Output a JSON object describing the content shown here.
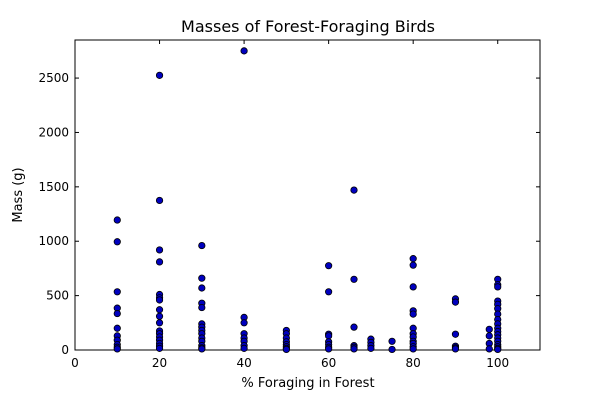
{
  "chart_data": {
    "type": "scatter",
    "title": "Masses of Forest-Foraging Birds",
    "xlabel": "% Foraging in Forest",
    "ylabel": "Mass (g)",
    "xlim": [
      0,
      110
    ],
    "ylim": [
      0,
      2850
    ],
    "x_ticks": [
      0,
      20,
      40,
      60,
      80,
      100
    ],
    "y_ticks": [
      0,
      500,
      1000,
      1500,
      2000,
      2500
    ],
    "grid": false,
    "legend": "none",
    "marker_color": "#0000bf",
    "marker_edge_color": "#000000",
    "points": [
      [
        10,
        1195
      ],
      [
        10,
        995
      ],
      [
        10,
        535
      ],
      [
        10,
        385
      ],
      [
        10,
        335
      ],
      [
        10,
        200
      ],
      [
        10,
        130
      ],
      [
        10,
        90
      ],
      [
        10,
        50
      ],
      [
        10,
        25
      ],
      [
        10,
        10
      ],
      [
        20,
        2525
      ],
      [
        20,
        1375
      ],
      [
        20,
        920
      ],
      [
        20,
        810
      ],
      [
        20,
        510
      ],
      [
        20,
        480
      ],
      [
        20,
        460
      ],
      [
        20,
        370
      ],
      [
        20,
        310
      ],
      [
        20,
        250
      ],
      [
        20,
        175
      ],
      [
        20,
        150
      ],
      [
        20,
        120
      ],
      [
        20,
        90
      ],
      [
        20,
        60
      ],
      [
        20,
        35
      ],
      [
        20,
        15
      ],
      [
        30,
        960
      ],
      [
        30,
        660
      ],
      [
        30,
        570
      ],
      [
        30,
        430
      ],
      [
        30,
        390
      ],
      [
        30,
        240
      ],
      [
        30,
        210
      ],
      [
        30,
        180
      ],
      [
        30,
        150
      ],
      [
        30,
        110
      ],
      [
        30,
        80
      ],
      [
        30,
        40
      ],
      [
        30,
        20
      ],
      [
        30,
        10
      ],
      [
        40,
        2750
      ],
      [
        40,
        300
      ],
      [
        40,
        250
      ],
      [
        40,
        150
      ],
      [
        40,
        110
      ],
      [
        40,
        80
      ],
      [
        40,
        40
      ],
      [
        40,
        15
      ],
      [
        50,
        180
      ],
      [
        50,
        150
      ],
      [
        50,
        110
      ],
      [
        50,
        75
      ],
      [
        50,
        50
      ],
      [
        50,
        30
      ],
      [
        50,
        15
      ],
      [
        50,
        5
      ],
      [
        60,
        775
      ],
      [
        60,
        535
      ],
      [
        60,
        145
      ],
      [
        60,
        130
      ],
      [
        60,
        75
      ],
      [
        60,
        50
      ],
      [
        60,
        25
      ],
      [
        60,
        10
      ],
      [
        66,
        1470
      ],
      [
        66,
        650
      ],
      [
        66,
        210
      ],
      [
        66,
        40
      ],
      [
        66,
        25
      ],
      [
        66,
        10
      ],
      [
        70,
        100
      ],
      [
        70,
        70
      ],
      [
        70,
        40
      ],
      [
        70,
        15
      ],
      [
        75,
        80
      ],
      [
        75,
        5
      ],
      [
        80,
        840
      ],
      [
        80,
        780
      ],
      [
        80,
        580
      ],
      [
        80,
        360
      ],
      [
        80,
        330
      ],
      [
        80,
        200
      ],
      [
        80,
        150
      ],
      [
        80,
        120
      ],
      [
        80,
        80
      ],
      [
        80,
        60
      ],
      [
        80,
        30
      ],
      [
        80,
        10
      ],
      [
        90,
        470
      ],
      [
        90,
        440
      ],
      [
        90,
        145
      ],
      [
        90,
        35
      ],
      [
        90,
        20
      ],
      [
        90,
        10
      ],
      [
        98,
        190
      ],
      [
        98,
        130
      ],
      [
        98,
        60
      ],
      [
        98,
        10
      ],
      [
        100,
        650
      ],
      [
        100,
        600
      ],
      [
        100,
        580
      ],
      [
        100,
        450
      ],
      [
        100,
        420
      ],
      [
        100,
        380
      ],
      [
        100,
        330
      ],
      [
        100,
        280
      ],
      [
        100,
        240
      ],
      [
        100,
        200
      ],
      [
        100,
        170
      ],
      [
        100,
        140
      ],
      [
        100,
        110
      ],
      [
        100,
        80
      ],
      [
        100,
        50
      ],
      [
        100,
        30
      ],
      [
        100,
        15
      ],
      [
        100,
        5
      ]
    ]
  }
}
